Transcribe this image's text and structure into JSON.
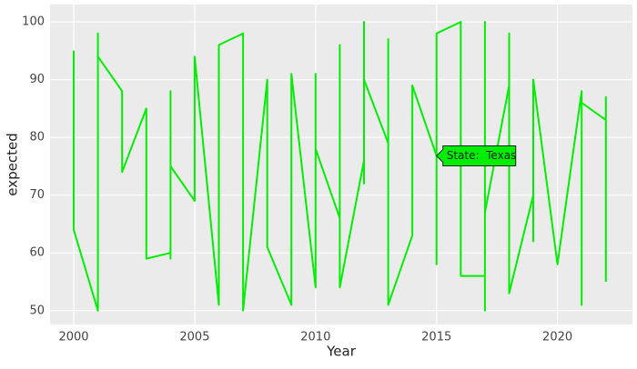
{
  "chart_data": {
    "type": "line",
    "x_label": "Year",
    "y_label": "expected",
    "tooltip": "State:  Texas",
    "series": [
      {
        "name": "Texas",
        "color": "#00ee00",
        "x": [
          2000,
          2000,
          2001,
          2001,
          2001,
          2002,
          2002,
          2003,
          2003,
          2004,
          2004,
          2004,
          2004,
          2005,
          2005,
          2006,
          2006,
          2007,
          2007,
          2008,
          2008,
          2009,
          2009,
          2010,
          2010,
          2010,
          2011,
          2011,
          2011,
          2012,
          2012,
          2012,
          2012,
          2013,
          2013,
          2013,
          2014,
          2014,
          2015,
          2015,
          2015,
          2016,
          2016,
          2017,
          2017,
          2017,
          2017,
          2018,
          2018,
          2018,
          2019,
          2019,
          2019,
          2020,
          2021,
          2021,
          2021,
          2022,
          2022,
          2022
        ],
        "values": [
          95,
          64,
          50,
          98,
          94,
          88,
          74,
          85,
          59,
          60,
          59,
          88,
          75,
          69,
          94,
          51,
          96,
          98,
          50,
          90,
          61,
          51,
          91,
          54,
          91,
          78,
          66,
          96,
          54,
          76,
          72,
          100,
          90,
          79,
          97,
          51,
          63,
          89,
          76.8,
          58,
          98,
          100,
          56,
          56,
          50,
          100,
          67,
          89,
          98,
          53,
          70,
          62,
          90,
          58,
          88,
          51,
          86,
          83,
          87,
          55
        ]
      }
    ],
    "xlim": [
      1999.02,
      2023.1
    ],
    "xticks": [
      2000,
      2005,
      2010,
      2015,
      2020
    ],
    "ylim": [
      47.6,
      103
    ],
    "yticks": [
      50,
      60,
      70,
      80,
      90,
      100
    ],
    "grid": true
  }
}
